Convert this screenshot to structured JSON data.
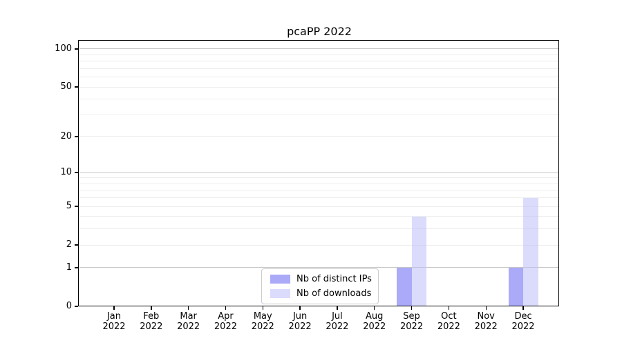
{
  "chart_data": {
    "type": "bar",
    "title": "pcaPP 2022",
    "categories": [
      {
        "month": "Jan",
        "year": "2022"
      },
      {
        "month": "Feb",
        "year": "2022"
      },
      {
        "month": "Mar",
        "year": "2022"
      },
      {
        "month": "Apr",
        "year": "2022"
      },
      {
        "month": "May",
        "year": "2022"
      },
      {
        "month": "Jun",
        "year": "2022"
      },
      {
        "month": "Jul",
        "year": "2022"
      },
      {
        "month": "Aug",
        "year": "2022"
      },
      {
        "month": "Sep",
        "year": "2022"
      },
      {
        "month": "Oct",
        "year": "2022"
      },
      {
        "month": "Nov",
        "year": "2022"
      },
      {
        "month": "Dec",
        "year": "2022"
      }
    ],
    "series": [
      {
        "name": "Nb of distinct IPs",
        "color": "rgba(142,142,245,0.75)",
        "values": [
          0,
          0,
          0,
          0,
          0,
          0,
          0,
          0,
          1,
          0,
          0,
          1
        ]
      },
      {
        "name": "Nb of downloads",
        "color": "rgba(190,190,249,0.55)",
        "values": [
          0,
          0,
          0,
          0,
          0,
          0,
          0,
          0,
          4,
          0,
          0,
          6
        ]
      }
    ],
    "yscale": "log1p",
    "yticks": [
      0,
      1,
      2,
      5,
      10,
      20,
      50,
      100
    ],
    "ylim": [
      0,
      116
    ],
    "grid": {
      "major_values": [
        1,
        10,
        100
      ],
      "minor_values": [
        2,
        3,
        4,
        5,
        6,
        7,
        8,
        9,
        20,
        30,
        40,
        50,
        60,
        70,
        80,
        90
      ]
    },
    "legend_position": "lower center",
    "colors": {
      "axis": "#000000",
      "grid_major": "#c6c6c6",
      "grid_minor": "#ededed",
      "background": "#ffffff"
    }
  }
}
